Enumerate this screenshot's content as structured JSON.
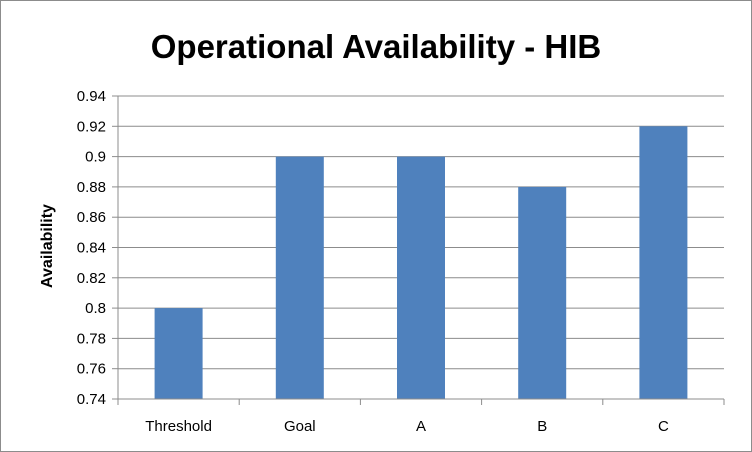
{
  "chart_data": {
    "type": "bar",
    "title": "Operational Availability - HIB",
    "xlabel": "",
    "ylabel": "Availability",
    "categories": [
      "Threshold",
      "Goal",
      "A",
      "B",
      "C"
    ],
    "values": [
      0.8,
      0.9,
      0.9,
      0.88,
      0.92
    ],
    "ylim": [
      0.74,
      0.94
    ],
    "yticks": [
      "0.74",
      "0.76",
      "0.78",
      "0.8",
      "0.82",
      "0.84",
      "0.86",
      "0.88",
      "0.9",
      "0.92",
      "0.94"
    ],
    "grid": true,
    "bar_color": "#4f81bd",
    "grid_color": "#8c8c8c"
  }
}
